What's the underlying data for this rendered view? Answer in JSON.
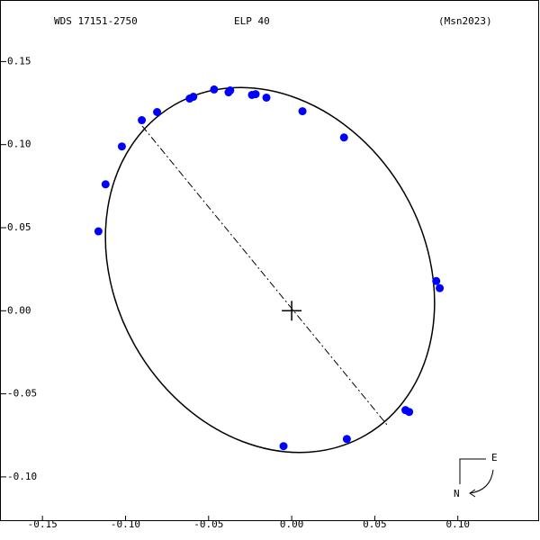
{
  "chart_data": {
    "type": "scatter",
    "title": "WDS 17151-2750",
    "subtitle": "ELP  40",
    "source": "(Msn2023)",
    "annotations": [
      "E",
      "N"
    ],
    "color": "#0000ff",
    "x": [
      -0.1163,
      -0.112,
      -0.1022,
      -0.0902,
      -0.081,
      -0.0614,
      -0.0592,
      -0.0467,
      -0.038,
      -0.037,
      -0.0239,
      -0.0217,
      -0.0152,
      0.0065,
      0.0315,
      0.087,
      0.0891,
      0.0685,
      0.0707,
      0.0332,
      -0.0049
    ],
    "y": [
      0.0478,
      0.0761,
      0.0989,
      0.1147,
      0.1196,
      0.1277,
      0.1288,
      0.1332,
      0.1315,
      0.1326,
      0.1299,
      0.1304,
      0.1283,
      0.1201,
      0.1043,
      0.0179,
      0.0136,
      -0.0598,
      -0.0609,
      -0.0772,
      -0.0815
    ],
    "xlim": [
      -0.175,
      0.1489
    ],
    "ylim": [
      -0.1266,
      0.1865
    ],
    "xticks": [
      {
        "value": -0.15,
        "label": "-0.15"
      },
      {
        "value": -0.1,
        "label": "-0.10"
      },
      {
        "value": -0.05,
        "label": "-0.05"
      },
      {
        "value": 0,
        "label": "0.00"
      },
      {
        "value": 0.05,
        "label": "0.05"
      },
      {
        "value": 0.1,
        "label": "0.10"
      }
    ],
    "yticks": [
      {
        "value": 0.15,
        "label": "0.15"
      },
      {
        "value": 0.1,
        "label": "0.10"
      },
      {
        "value": 0.05,
        "label": "0.05"
      },
      {
        "value": 0,
        "label": "0.00"
      },
      {
        "value": -0.05,
        "label": "-0.05"
      },
      {
        "value": -0.1,
        "label": "-0.10"
      }
    ]
  }
}
